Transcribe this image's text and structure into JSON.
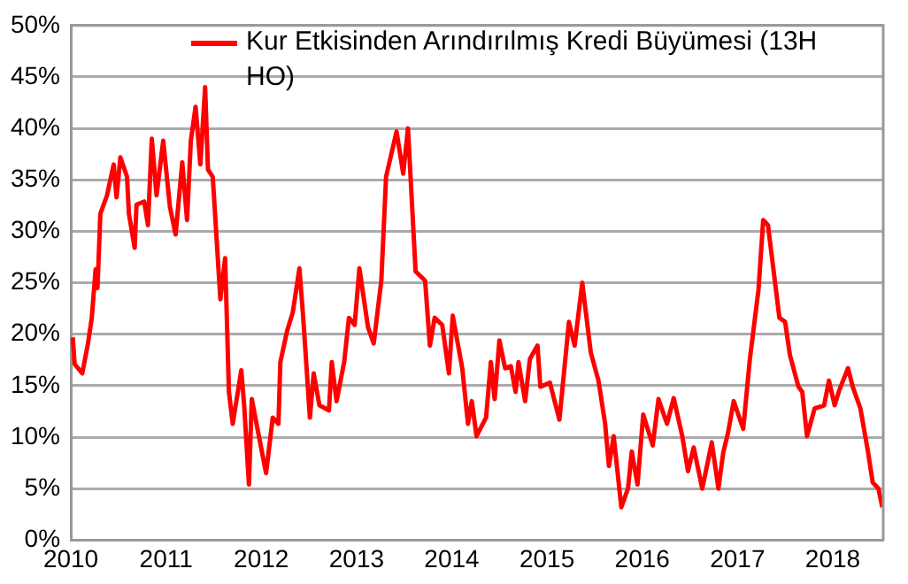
{
  "chart_data": {
    "type": "line",
    "x": [
      2010.02,
      2010.04,
      2010.12,
      2010.18,
      2010.22,
      2010.26,
      2010.28,
      2010.31,
      2010.38,
      2010.45,
      2010.48,
      2010.52,
      2010.59,
      2010.61,
      2010.67,
      2010.69,
      2010.77,
      2010.81,
      2010.85,
      2010.9,
      2010.97,
      2011.04,
      2011.1,
      2011.17,
      2011.22,
      2011.26,
      2011.31,
      2011.36,
      2011.41,
      2011.44,
      2011.49,
      2011.57,
      2011.62,
      2011.66,
      2011.7,
      2011.79,
      2011.82,
      2011.87,
      2011.9,
      2011.96,
      2012.05,
      2012.12,
      2012.18,
      2012.2,
      2012.27,
      2012.33,
      2012.4,
      2012.44,
      2012.51,
      2012.55,
      2012.61,
      2012.71,
      2012.74,
      2012.79,
      2012.87,
      2012.92,
      2012.98,
      2013.03,
      2013.12,
      2013.18,
      2013.26,
      2013.31,
      2013.42,
      2013.49,
      2013.54,
      2013.62,
      2013.72,
      2013.77,
      2013.82,
      2013.9,
      2013.97,
      2014.01,
      2014.11,
      2014.17,
      2014.21,
      2014.26,
      2014.36,
      2014.41,
      2014.45,
      2014.5,
      2014.56,
      2014.62,
      2014.67,
      2014.7,
      2014.77,
      2014.82,
      2014.9,
      2014.93,
      2015.03,
      2015.13,
      2015.23,
      2015.29,
      2015.37,
      2015.46,
      2015.54,
      2015.61,
      2015.65,
      2015.7,
      2015.78,
      2015.85,
      2015.89,
      2015.95,
      2016.01,
      2016.11,
      2016.17,
      2016.26,
      2016.33,
      2016.42,
      2016.48,
      2016.54,
      2016.63,
      2016.73,
      2016.8,
      2016.85,
      2016.9,
      2016.96,
      2017.06,
      2017.13,
      2017.22,
      2017.27,
      2017.32,
      2017.44,
      2017.5,
      2017.55,
      2017.64,
      2017.68,
      2017.73,
      2017.81,
      2017.91,
      2017.96,
      2018.02,
      2018.07,
      2018.16,
      2018.21,
      2018.29,
      2018.37,
      2018.42,
      2018.48,
      2018.52
    ],
    "series": [
      {
        "name": "Kur Etkisinden Arındırılmış Kredi Büyümesi (13H HO)",
        "color": "#ff0000",
        "values": [
          19.7,
          17.1,
          16.2,
          19.1,
          21.6,
          26.3,
          24.5,
          31.7,
          33.5,
          36.5,
          33.3,
          37.2,
          35.3,
          31.7,
          28.4,
          32.6,
          32.9,
          30.6,
          39.0,
          33.5,
          38.8,
          32.4,
          29.7,
          36.7,
          31.1,
          38.8,
          42.1,
          36.5,
          44.0,
          36.0,
          35.3,
          23.4,
          27.4,
          14.4,
          11.3,
          16.5,
          13.1,
          5.4,
          13.7,
          10.8,
          6.5,
          11.9,
          11.3,
          17.3,
          20.3,
          22.1,
          26.4,
          21.6,
          11.9,
          16.2,
          13.1,
          12.6,
          17.3,
          13.5,
          17.3,
          21.6,
          20.9,
          26.4,
          20.7,
          19.1,
          25.2,
          35.3,
          39.7,
          35.6,
          40.0,
          26.1,
          25.2,
          18.9,
          21.6,
          20.9,
          16.2,
          21.8,
          16.7,
          11.3,
          13.5,
          10.1,
          11.9,
          17.3,
          13.7,
          19.4,
          16.7,
          16.9,
          14.4,
          17.3,
          13.5,
          17.6,
          18.9,
          14.9,
          15.3,
          11.7,
          21.2,
          18.9,
          25.0,
          18.2,
          15.5,
          11.3,
          7.2,
          10.1,
          3.2,
          5.0,
          8.6,
          5.4,
          12.2,
          9.2,
          13.7,
          11.3,
          13.8,
          10.1,
          6.7,
          9.0,
          5.0,
          9.5,
          5.0,
          8.5,
          10.4,
          13.5,
          10.8,
          17.6,
          24.3,
          31.1,
          30.6,
          21.6,
          21.2,
          18.0,
          14.9,
          14.4,
          10.1,
          12.8,
          13.1,
          15.5,
          13.1,
          14.6,
          16.7,
          14.9,
          12.8,
          8.6,
          5.6,
          5.0,
          3.2
        ]
      }
    ],
    "xlim": [
      2010,
      2018.53
    ],
    "xticks": [
      2010,
      2011,
      2012,
      2013,
      2014,
      2015,
      2016,
      2017,
      2018
    ],
    "ylim": [
      0,
      50
    ],
    "yticks": [
      {
        "value": 0,
        "label": "0%"
      },
      {
        "value": 5,
        "label": "5%"
      },
      {
        "value": 10,
        "label": "10%"
      },
      {
        "value": 15,
        "label": "15%"
      },
      {
        "value": 20,
        "label": "20%"
      },
      {
        "value": 25,
        "label": "25%"
      },
      {
        "value": 30,
        "label": "30%"
      },
      {
        "value": 35,
        "label": "35%"
      },
      {
        "value": 40,
        "label": "40%"
      },
      {
        "value": 45,
        "label": "45%"
      },
      {
        "value": 50,
        "label": "50%"
      }
    ],
    "grid": "y",
    "legend": "top",
    "marker": "none"
  }
}
